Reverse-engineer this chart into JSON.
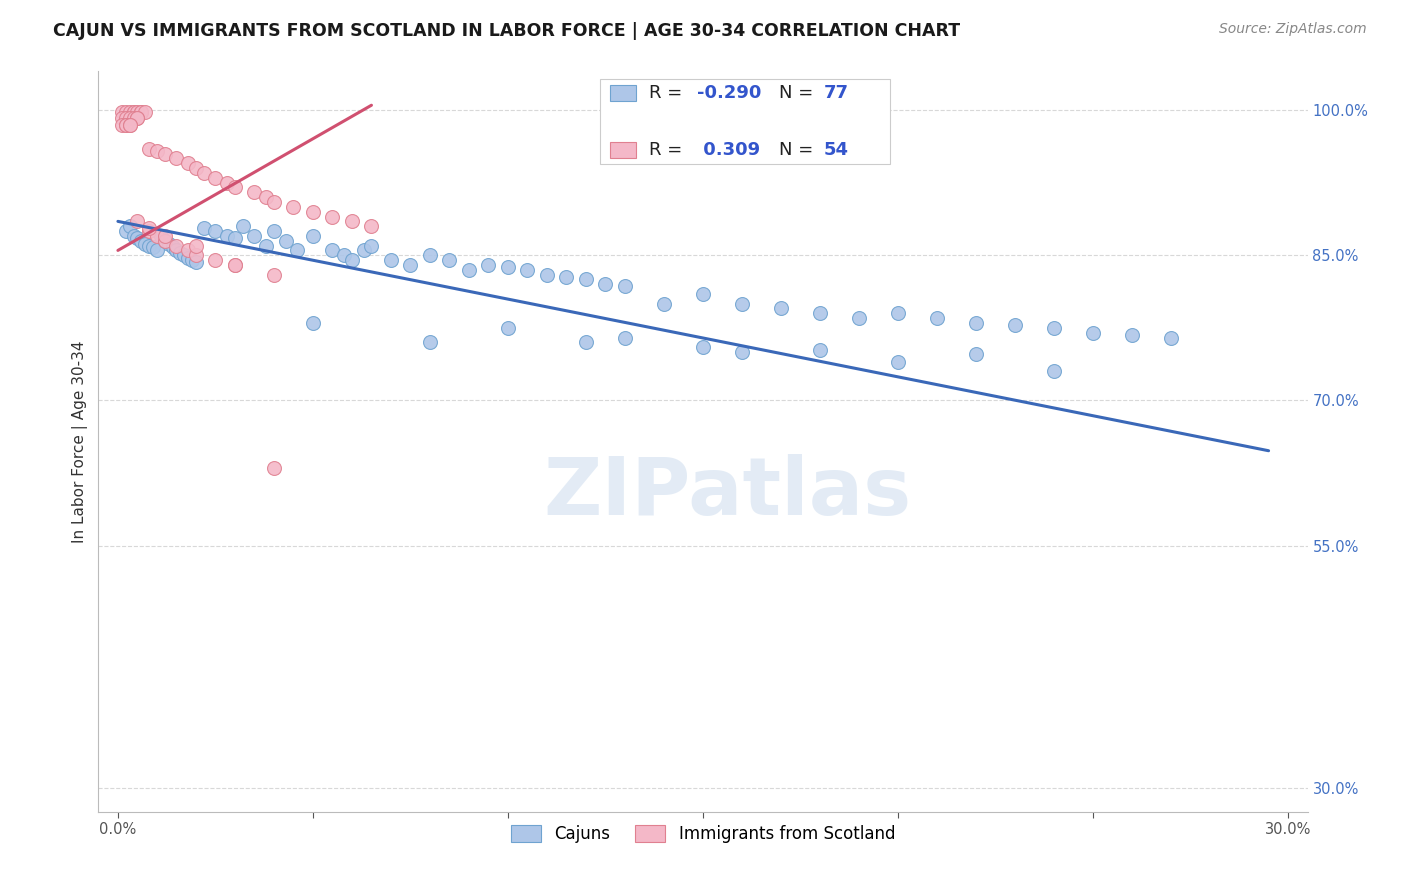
{
  "title": "CAJUN VS IMMIGRANTS FROM SCOTLAND IN LABOR FORCE | AGE 30-34 CORRELATION CHART",
  "source": "Source: ZipAtlas.com",
  "ylabel_label": "In Labor Force | Age 30-34",
  "watermark": "ZIPatlas",
  "legend_blue_R": "-0.290",
  "legend_blue_N": "77",
  "legend_pink_R": "0.309",
  "legend_pink_N": "54",
  "blue_scatter_color": "#aec6e8",
  "blue_edge_color": "#6fa3d0",
  "pink_scatter_color": "#f4b8c8",
  "pink_edge_color": "#e08090",
  "trend_blue_color": "#3a68b8",
  "trend_pink_color": "#d05070",
  "xlim": [
    -0.005,
    0.305
  ],
  "ylim": [
    0.275,
    1.04
  ],
  "xtick_positions": [
    0.0,
    0.05,
    0.1,
    0.15,
    0.2,
    0.25,
    0.3
  ],
  "ytick_positions": [
    0.3,
    0.55,
    0.7,
    0.85,
    1.0
  ],
  "blue_trend_x": [
    0.0,
    0.295
  ],
  "blue_trend_y": [
    0.885,
    0.648
  ],
  "pink_trend_x": [
    0.0,
    0.065
  ],
  "pink_trend_y": [
    0.855,
    1.005
  ],
  "bg_color": "#ffffff",
  "grid_color": "#d8d8d8",
  "watermark_color": "#ccdcee",
  "right_label_color": "#4472c4",
  "title_fontsize": 12.5,
  "label_fontsize": 11,
  "tick_fontsize": 10.5,
  "source_fontsize": 10
}
